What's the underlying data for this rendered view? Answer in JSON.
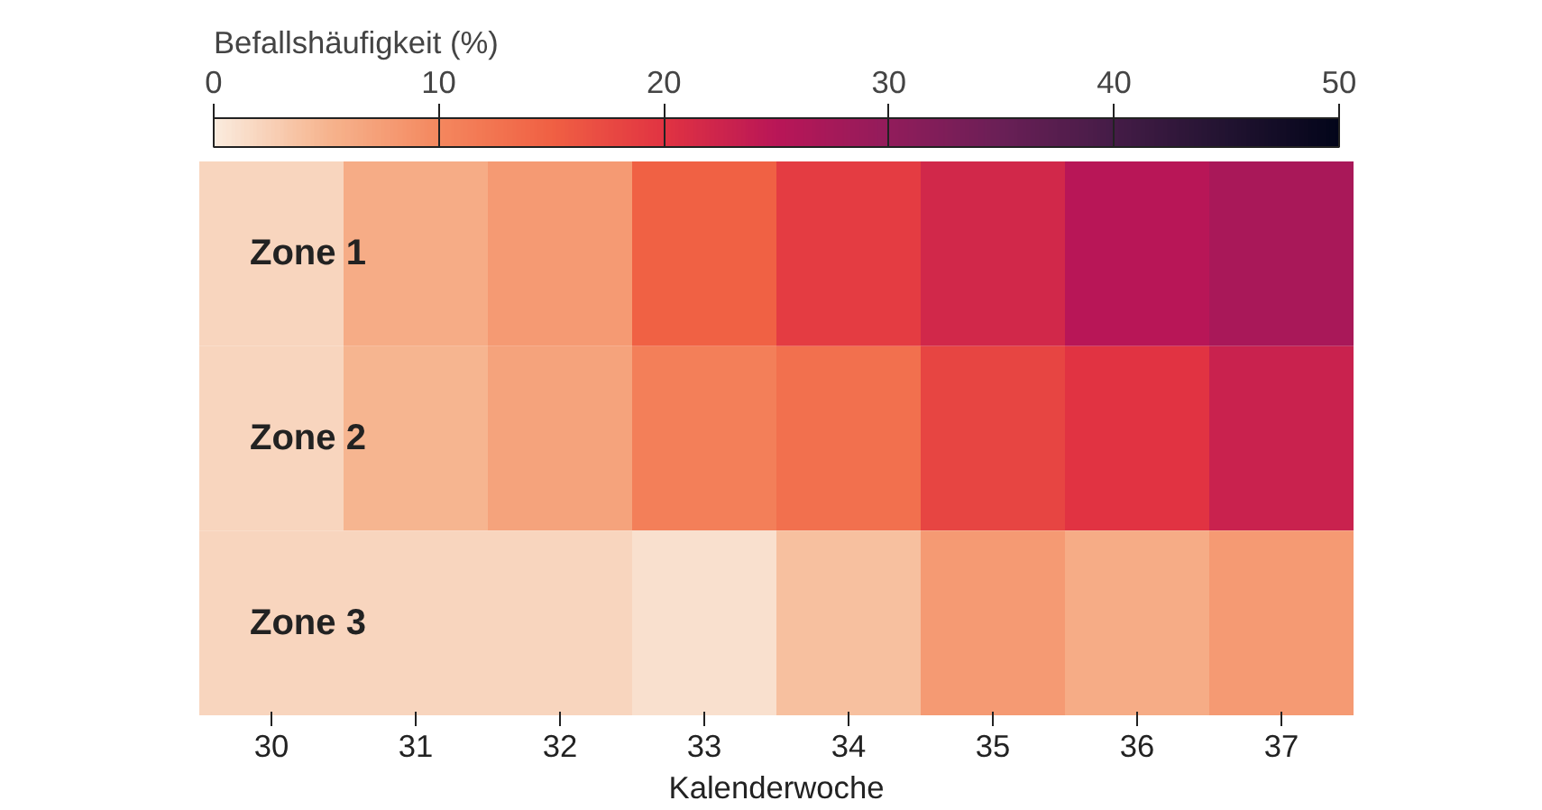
{
  "chart_data": {
    "type": "heatmap",
    "xlabel": "Kalenderwoche",
    "clabel": "Befallshäufigkeit (%)",
    "categories": [
      "30",
      "31",
      "32",
      "33",
      "34",
      "35",
      "36",
      "37"
    ],
    "y_categories": [
      "Zone 1",
      "Zone 2",
      "Zone 3"
    ],
    "cells": [
      [
        2,
        6,
        8,
        15,
        19,
        22,
        25,
        27
      ],
      [
        2,
        5,
        7,
        11,
        13,
        18,
        20,
        23
      ],
      [
        2,
        2,
        2,
        1,
        4,
        8,
        6,
        8
      ]
    ],
    "clim": [
      0,
      50
    ],
    "cticks": [
      0,
      10,
      20,
      30,
      40,
      50
    ]
  }
}
